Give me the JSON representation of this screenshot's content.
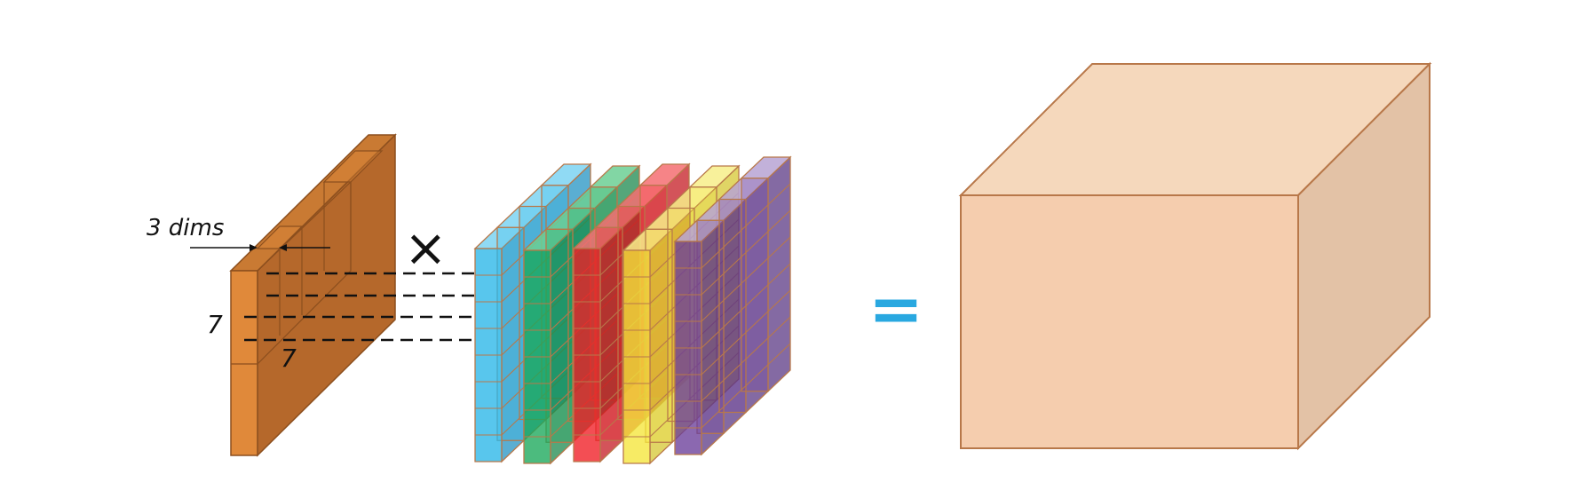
{
  "labels": {
    "dims": "3 dims",
    "height": "7",
    "width": "7",
    "operator_times": "×",
    "operator_equals": "="
  },
  "filter": {
    "face_color": "#e0893a",
    "side_color": "#b5682b",
    "top_color": "#c97a33",
    "stroke": "#8c4f1e"
  },
  "kernels": [
    {
      "name": "kernel-blue",
      "front": "#29b6e8",
      "side": "#1a8fc0",
      "top": "#7dd4f2"
    },
    {
      "name": "kernel-green",
      "front": "#1aa85a",
      "side": "#148447",
      "top": "#6ccf94"
    },
    {
      "name": "kernel-red",
      "front": "#f01c24",
      "side": "#c2121a",
      "top": "#f56e72"
    },
    {
      "name": "kernel-yellow",
      "front": "#f5e63a",
      "side": "#d4c52a",
      "top": "#f7ef8a"
    },
    {
      "name": "kernel-purple",
      "front": "#6a3d9a",
      "side": "#553080",
      "top": "#b7a3d4"
    }
  ],
  "output": {
    "front": "#f5cdae",
    "top": "#f5d8bc",
    "side": "#e3c2a6",
    "stroke": "#b8784a"
  },
  "accent": {
    "equals": "#29a8e0"
  }
}
